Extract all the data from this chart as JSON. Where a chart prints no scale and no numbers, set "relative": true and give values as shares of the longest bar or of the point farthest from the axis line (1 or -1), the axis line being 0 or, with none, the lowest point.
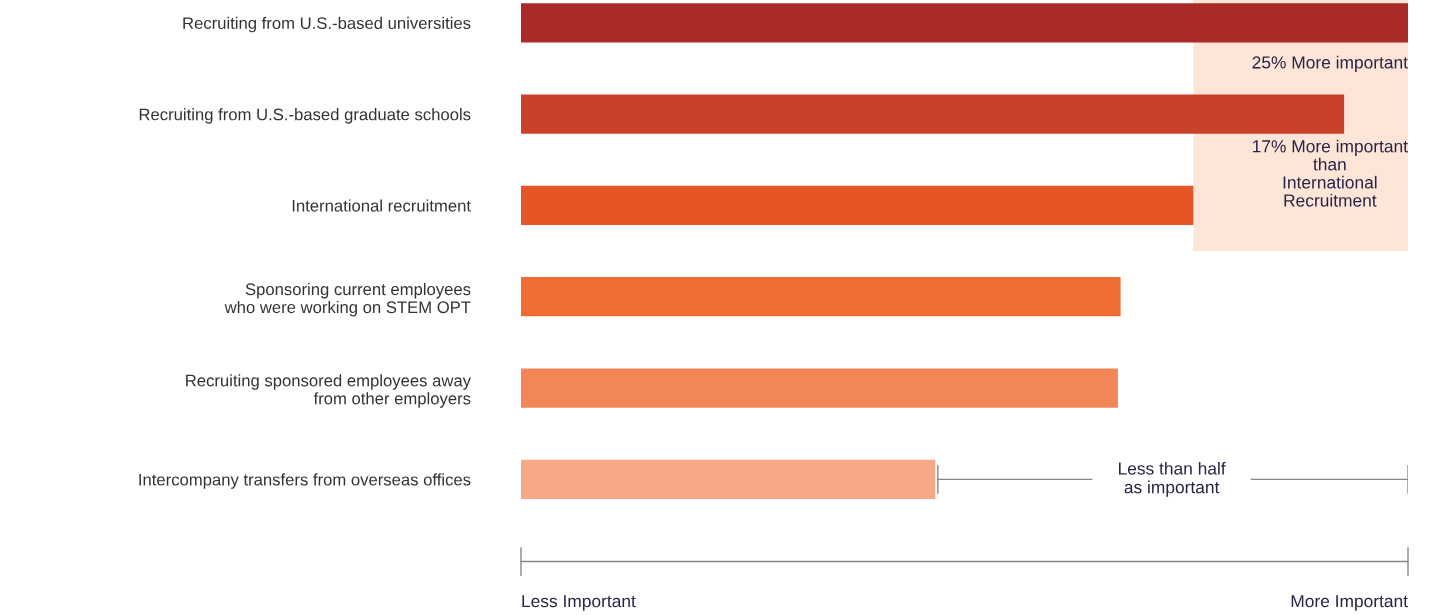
{
  "chart_data": {
    "type": "bar",
    "orientation": "horizontal",
    "relative": true,
    "categories": [
      "Recruiting from U.S.-based universities",
      "Recruiting from U.S.-based graduate schools",
      "International recruitment",
      "Sponsoring current employees\nwho were working on STEM OPT",
      "Recruiting sponsored employees away\nfrom other employers",
      "Intercompany transfers from overseas offices"
    ],
    "values": [
      1.0,
      0.928,
      0.758,
      0.676,
      0.673,
      0.467
    ],
    "colors": [
      "#a92a26",
      "#c94128",
      "#e55526",
      "#f06c35",
      "#f38657",
      "#f7a886"
    ],
    "bands": [
      {
        "axis": "x",
        "from": 0.758,
        "to": 1.0,
        "color": "#fde6d8"
      }
    ],
    "annotations": [
      "25% More important",
      "17% More important\nthan\nInternational\nRecruitment",
      "Less than half\nas important",
      "Less Important",
      "More Important"
    ],
    "grid": false,
    "legend": false
  }
}
